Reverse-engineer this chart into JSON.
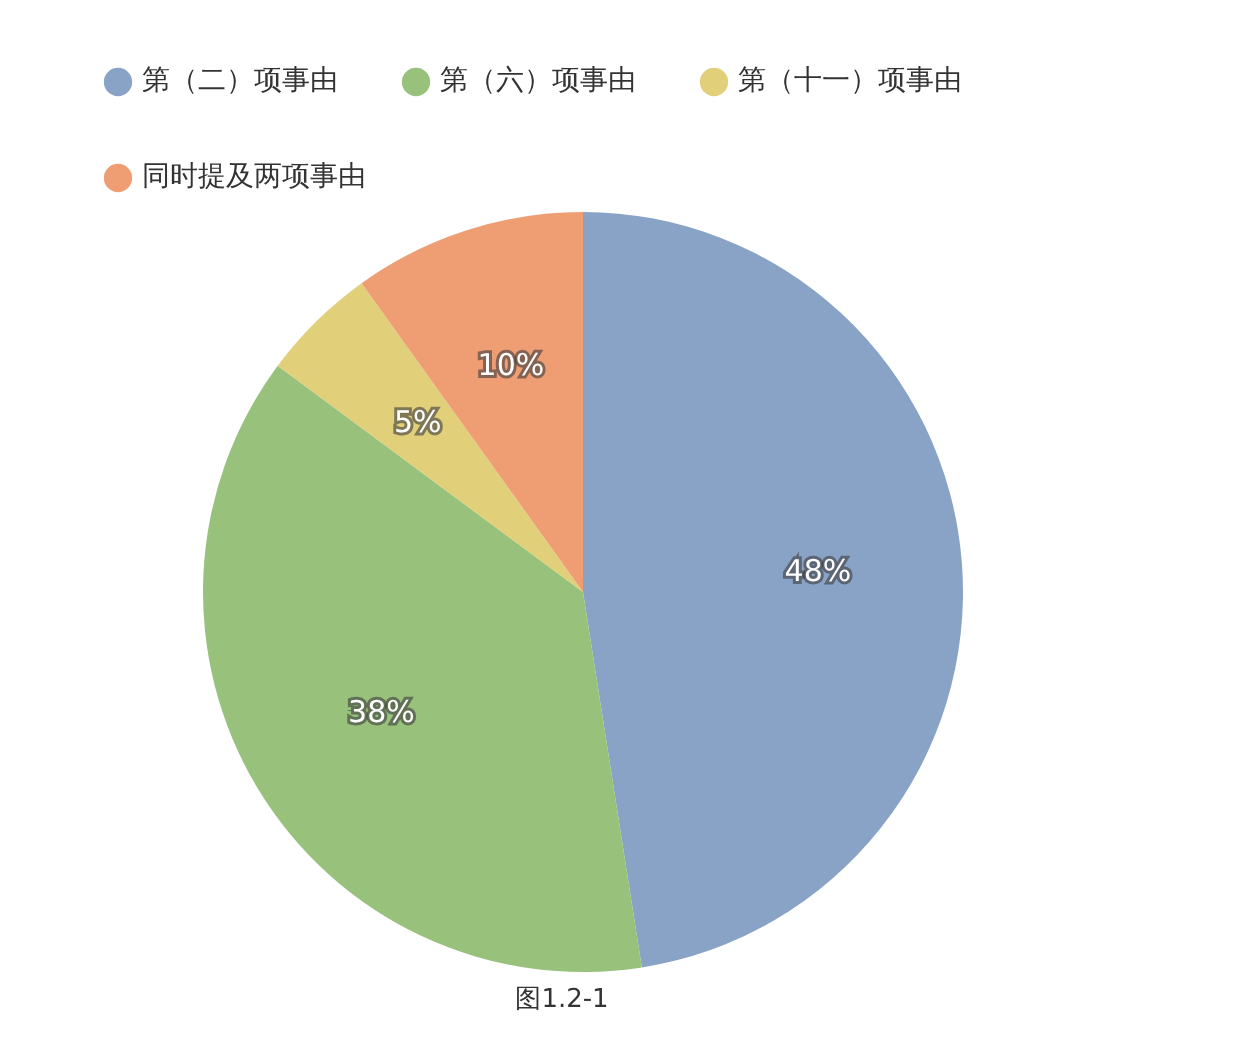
{
  "chart_data": {
    "type": "pie",
    "categories": [
      "第（二）项事由",
      "第（六）项事由",
      "第（十一）项事由",
      "同时提及两项事由"
    ],
    "values": [
      48,
      38,
      5,
      10
    ],
    "colors": [
      "#89a3c6",
      "#98c17c",
      "#e2cf7a",
      "#ef9e74"
    ],
    "value_labels": [
      "48%",
      "38%",
      "5%",
      "10%"
    ],
    "legend": "top left",
    "annotations": [
      "图1.2-1"
    ]
  }
}
